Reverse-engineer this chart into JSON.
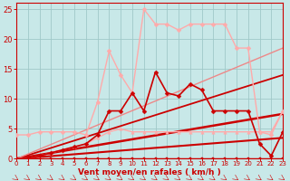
{
  "xlabel": "Vent moyen/en rafales ( km/h )",
  "xlim": [
    0,
    23
  ],
  "ylim": [
    0,
    26
  ],
  "yticks": [
    0,
    5,
    10,
    15,
    20,
    25
  ],
  "xticks": [
    0,
    1,
    2,
    3,
    4,
    5,
    6,
    7,
    8,
    9,
    10,
    11,
    12,
    13,
    14,
    15,
    16,
    17,
    18,
    19,
    20,
    21,
    22,
    23
  ],
  "bg_color": "#c8e8e8",
  "grid_color": "#a0c8c8",
  "lines": [
    {
      "x": [
        0,
        1,
        2,
        3,
        4,
        5,
        6,
        7,
        8,
        9,
        10,
        11,
        12,
        13,
        14,
        15,
        16,
        17,
        18,
        19,
        20,
        21,
        22,
        23
      ],
      "y": [
        0,
        0,
        0,
        0,
        0,
        0,
        0,
        0,
        0,
        0,
        0,
        0,
        0,
        0,
        0,
        0,
        0,
        0,
        0,
        0,
        0,
        0,
        0,
        0
      ],
      "color": "#cc0000",
      "lw": 1.0,
      "marker": "s",
      "ms": 2.0,
      "zorder": 4
    },
    {
      "x": [
        0,
        23
      ],
      "y": [
        0,
        3.5
      ],
      "color": "#cc0000",
      "lw": 1.5,
      "marker": null,
      "ms": 0,
      "zorder": 2
    },
    {
      "x": [
        0,
        23
      ],
      "y": [
        0,
        7.5
      ],
      "color": "#cc0000",
      "lw": 1.8,
      "marker": null,
      "ms": 0,
      "zorder": 2
    },
    {
      "x": [
        0,
        23
      ],
      "y": [
        0,
        14.0
      ],
      "color": "#cc0000",
      "lw": 1.3,
      "marker": null,
      "ms": 0,
      "zorder": 2
    },
    {
      "x": [
        0,
        23
      ],
      "y": [
        0,
        18.5
      ],
      "color": "#ee8888",
      "lw": 1.0,
      "marker": null,
      "ms": 0,
      "zorder": 2
    },
    {
      "x": [
        0,
        1,
        2,
        3,
        4,
        5,
        6,
        7,
        8,
        9,
        10,
        11,
        12,
        13,
        14,
        15,
        16,
        17,
        18,
        19,
        20,
        21,
        22,
        23
      ],
      "y": [
        4,
        4,
        4.5,
        4.5,
        4.5,
        4.5,
        4.0,
        9.5,
        18.0,
        14.0,
        11.0,
        25.0,
        22.5,
        22.5,
        21.5,
        22.5,
        22.5,
        22.5,
        22.5,
        18.5,
        18.5,
        4.5,
        4.0,
        8.0
      ],
      "color": "#ffaaaa",
      "lw": 1.0,
      "marker": "D",
      "ms": 2.5,
      "zorder": 4
    },
    {
      "x": [
        0,
        1,
        2,
        3,
        4,
        5,
        6,
        7,
        8,
        9,
        10,
        11,
        12,
        13,
        14,
        15,
        16,
        17,
        18,
        19,
        20,
        21,
        22,
        23
      ],
      "y": [
        0,
        0,
        0.5,
        1.0,
        1.5,
        2.0,
        2.5,
        4.0,
        8.0,
        8.0,
        11.0,
        8.0,
        14.5,
        11.0,
        10.5,
        12.5,
        11.5,
        8.0,
        8.0,
        8.0,
        8.0,
        2.5,
        0.5,
        4.5
      ],
      "color": "#cc0000",
      "lw": 1.2,
      "marker": "D",
      "ms": 2.5,
      "zorder": 5
    },
    {
      "x": [
        0,
        1,
        2,
        3,
        4,
        5,
        6,
        7,
        8,
        9,
        10,
        11,
        12,
        13,
        14,
        15,
        16,
        17,
        18,
        19,
        20,
        21,
        22,
        23
      ],
      "y": [
        0,
        0,
        0.5,
        1.0,
        1.5,
        2.0,
        2.5,
        3.5,
        4.5,
        5.0,
        4.5,
        4.5,
        4.5,
        4.5,
        4.5,
        4.5,
        4.5,
        4.5,
        4.5,
        4.5,
        4.5,
        4.5,
        4.5,
        8.0
      ],
      "color": "#ffaaaa",
      "lw": 1.0,
      "marker": "^",
      "ms": 2.5,
      "zorder": 4
    }
  ],
  "arrows": [
    0,
    1,
    2,
    3,
    4,
    5,
    6,
    7,
    8,
    9,
    10,
    11,
    12,
    13,
    14,
    15,
    16,
    17,
    18,
    19,
    20,
    21,
    22,
    23
  ]
}
